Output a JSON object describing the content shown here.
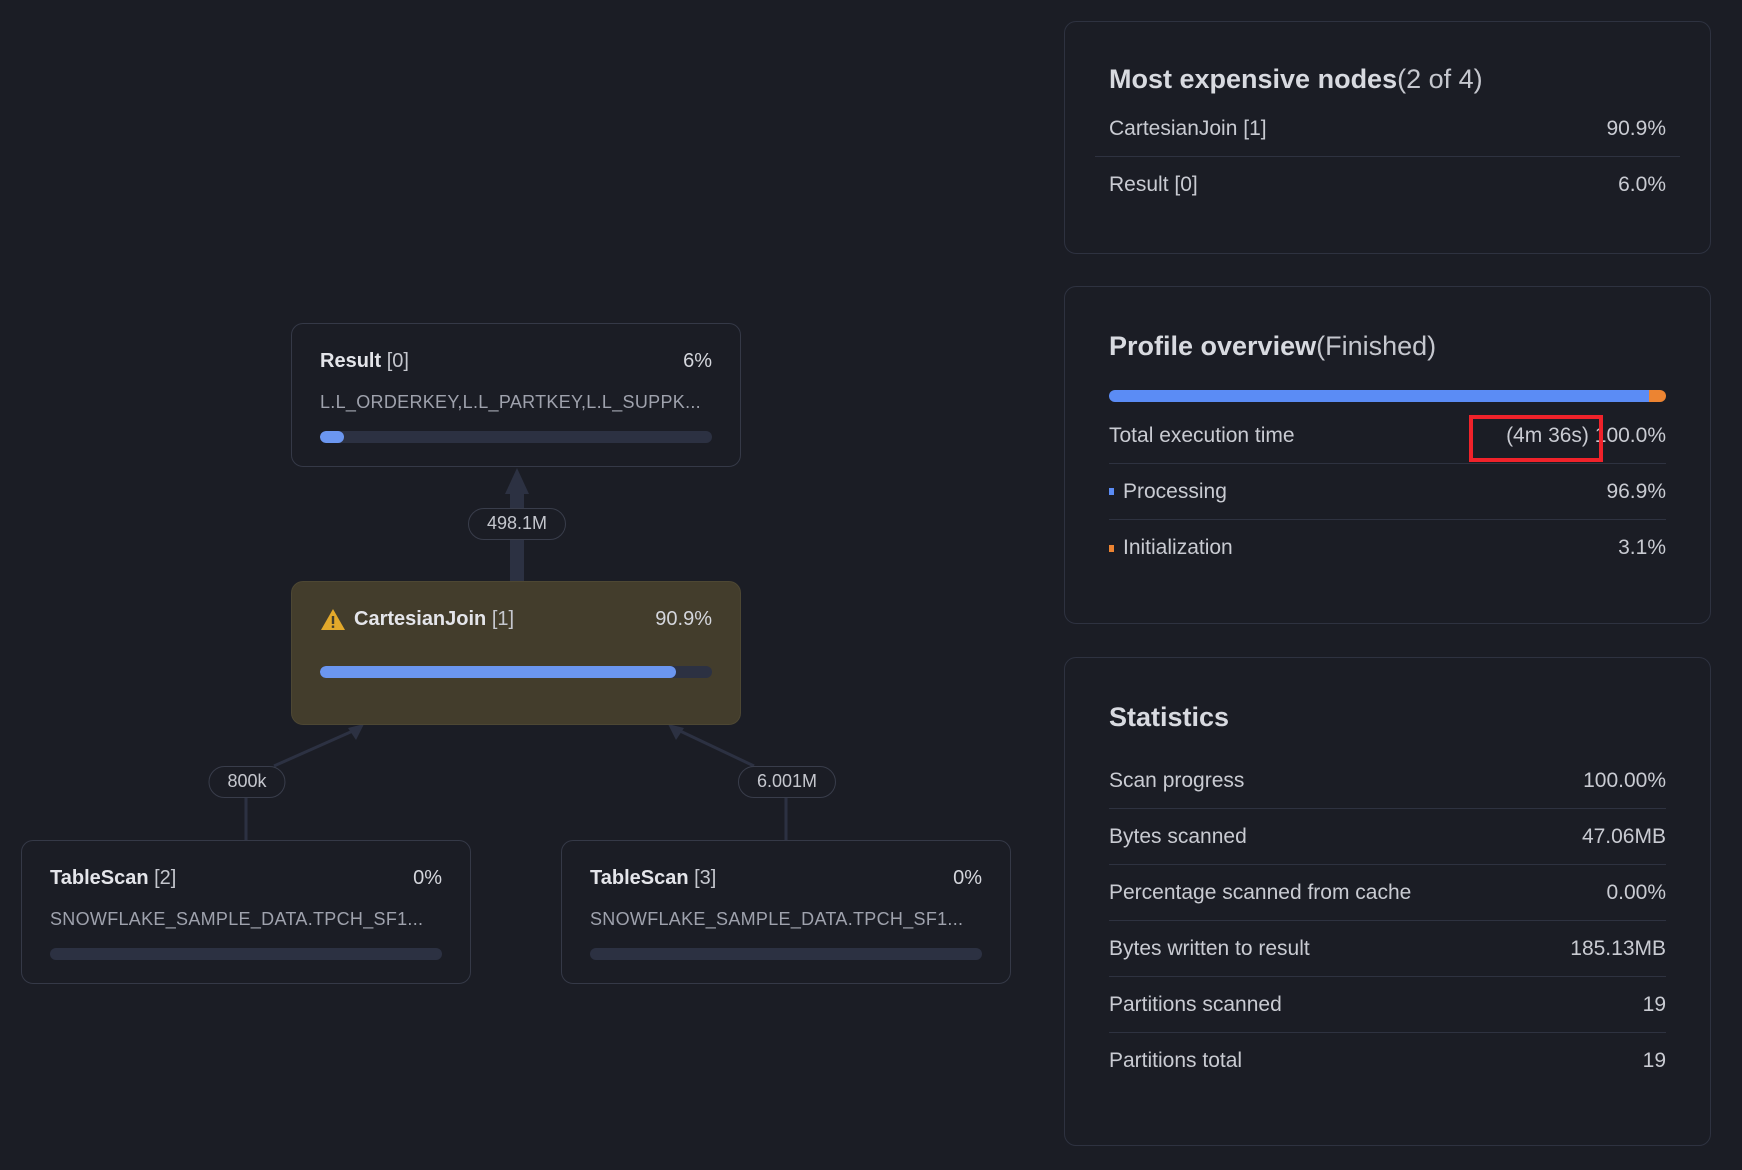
{
  "nodes": [
    {
      "title": "Result",
      "index": "[0]",
      "percent": "6%",
      "detail": "L.L_ORDERKEY,L.L_PARTKEY,L.L_SUPPK...",
      "progress": 6
    },
    {
      "title": "CartesianJoin",
      "index": "[1]",
      "percent": "90.9%",
      "detail": "",
      "progress": 90.9,
      "icon": "warning-icon"
    },
    {
      "title": "TableScan",
      "index": "[2]",
      "percent": "0%",
      "detail": "SNOWFLAKE_SAMPLE_DATA.TPCH_SF1...",
      "progress": 0
    },
    {
      "title": "TableScan",
      "index": "[3]",
      "percent": "0%",
      "detail": "SNOWFLAKE_SAMPLE_DATA.TPCH_SF1...",
      "progress": 0
    }
  ],
  "edges": {
    "join_to_result": "498.1M",
    "scan2_to_join": "800k",
    "scan3_to_join": "6.001M"
  },
  "expensive": {
    "title": "Most expensive nodes",
    "count": "(2 of 4)",
    "rows": [
      {
        "label": "CartesianJoin [1]",
        "value": "90.9%"
      },
      {
        "label": "Result [0]",
        "value": "6.0%"
      }
    ]
  },
  "profile": {
    "title": "Profile overview",
    "status": "(Finished)",
    "processing_pct": 96.9,
    "init_pct": 3.1,
    "total_label": "Total execution time",
    "total_time": "(4m 36s)",
    "total_pct": "100.0%",
    "processing_label": "Processing",
    "processing_value": "96.9%",
    "init_label": "Initialization",
    "init_value": "3.1%",
    "colors": {
      "processing": "#5b8cf5",
      "initialization": "#ec8432"
    }
  },
  "statistics": {
    "title": "Statistics",
    "rows": [
      {
        "label": "Scan progress",
        "value": "100.00%"
      },
      {
        "label": "Bytes scanned",
        "value": "47.06MB"
      },
      {
        "label": "Percentage scanned from cache",
        "value": "0.00%"
      },
      {
        "label": "Bytes written to result",
        "value": "185.13MB"
      },
      {
        "label": "Partitions scanned",
        "value": "19"
      },
      {
        "label": "Partitions total",
        "value": "19"
      }
    ]
  }
}
